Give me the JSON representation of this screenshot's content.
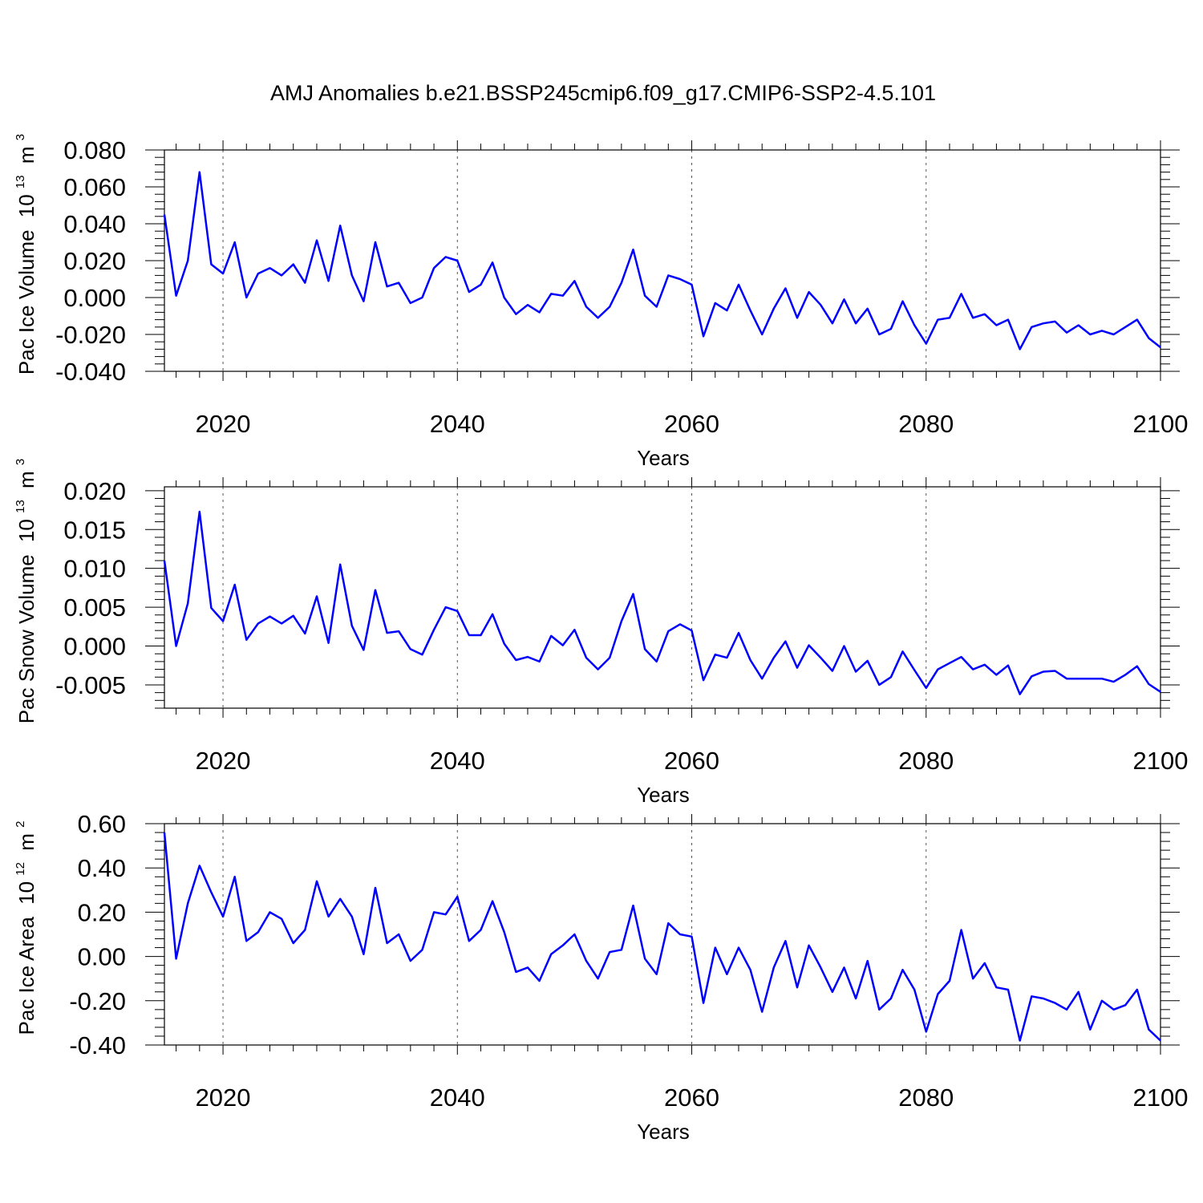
{
  "title": "AMJ Anomalies b.e21.BSSP245cmip6.f09_g17.CMIP6-SSP2-4.5.101",
  "colors": {
    "series": "#0000ff",
    "axes": "#000000",
    "grid": "#555555"
  },
  "chart_data": [
    {
      "type": "line",
      "ylabel": "Pac Ice Volume",
      "ylabel_unit": {
        "base": "10",
        "exp": "13",
        "unit": "m",
        "unit_exp": "3"
      },
      "xlabel": "Years",
      "xlim": [
        2015,
        2100
      ],
      "ylim": [
        -0.04,
        0.08
      ],
      "xticks": [
        2020,
        2040,
        2060,
        2080,
        2100
      ],
      "xtick_labels": [
        "2020",
        "2040",
        "2060",
        "2080",
        "2100"
      ],
      "yticks": [
        -0.04,
        -0.02,
        0.0,
        0.02,
        0.04,
        0.06,
        0.08
      ],
      "ytick_labels": [
        "-0.040",
        "-0.020",
        "0.000",
        "0.020",
        "0.040",
        "0.060",
        "0.080"
      ],
      "grid": "vertical dashed at major x ticks",
      "start_year": 2015,
      "values": [
        0.045,
        0.001,
        0.02,
        0.068,
        0.018,
        0.013,
        0.03,
        0.0,
        0.013,
        0.016,
        0.012,
        0.018,
        0.008,
        0.031,
        0.009,
        0.039,
        0.012,
        -0.002,
        0.03,
        0.006,
        0.008,
        -0.003,
        0.0,
        0.016,
        0.022,
        0.02,
        0.003,
        0.007,
        0.019,
        0.0,
        -0.009,
        -0.004,
        -0.008,
        0.002,
        0.001,
        0.009,
        -0.005,
        -0.011,
        -0.005,
        0.008,
        0.026,
        0.001,
        -0.005,
        0.012,
        0.01,
        0.007,
        -0.021,
        -0.003,
        -0.007,
        0.007,
        -0.007,
        -0.02,
        -0.006,
        0.005,
        -0.011,
        0.003,
        -0.004,
        -0.014,
        -0.001,
        -0.014,
        -0.006,
        -0.02,
        -0.017,
        -0.002,
        -0.015,
        -0.025,
        -0.012,
        -0.011,
        0.002,
        -0.011,
        -0.009,
        -0.015,
        -0.012,
        -0.028,
        -0.016,
        -0.014,
        -0.013,
        -0.019,
        -0.015,
        -0.02,
        -0.018,
        -0.02,
        -0.016,
        -0.012,
        -0.022,
        -0.027
      ]
    },
    {
      "type": "line",
      "ylabel": "Pac Snow Volume",
      "ylabel_unit": {
        "base": "10",
        "exp": "13",
        "unit": "m",
        "unit_exp": "3"
      },
      "xlabel": "Years",
      "xlim": [
        2015,
        2100
      ],
      "ylim": [
        -0.008,
        0.0205
      ],
      "xticks": [
        2020,
        2040,
        2060,
        2080,
        2100
      ],
      "xtick_labels": [
        "2020",
        "2040",
        "2060",
        "2080",
        "2100"
      ],
      "yticks": [
        -0.005,
        0.0,
        0.005,
        0.01,
        0.015,
        0.02
      ],
      "ytick_labels": [
        "-0.005",
        "0.000",
        "0.005",
        "0.010",
        "0.015",
        "0.020"
      ],
      "grid": "vertical dashed at major x ticks",
      "start_year": 2015,
      "values": [
        0.011,
        0.0,
        0.0055,
        0.0173,
        0.0049,
        0.0032,
        0.0079,
        0.0008,
        0.0029,
        0.0038,
        0.0029,
        0.0039,
        0.0016,
        0.0064,
        0.0004,
        0.0105,
        0.0026,
        -0.0005,
        0.0072,
        0.0017,
        0.0019,
        -0.0004,
        -0.0011,
        0.0021,
        0.005,
        0.0045,
        0.0014,
        0.0014,
        0.0041,
        0.0003,
        -0.0018,
        -0.0014,
        -0.002,
        0.0013,
        0.0001,
        0.0021,
        -0.0015,
        -0.003,
        -0.0015,
        0.0032,
        0.0067,
        -0.0004,
        -0.002,
        0.0019,
        0.0028,
        0.002,
        -0.0044,
        -0.0011,
        -0.0015,
        0.0017,
        -0.0018,
        -0.0042,
        -0.0015,
        0.0006,
        -0.0028,
        0.0001,
        -0.0015,
        -0.0032,
        0.0,
        -0.0033,
        -0.0019,
        -0.005,
        -0.004,
        -0.0007,
        -0.0031,
        -0.0054,
        -0.003,
        -0.0022,
        -0.0014,
        -0.003,
        -0.0024,
        -0.0037,
        -0.0025,
        -0.0062,
        -0.0039,
        -0.0033,
        -0.0032,
        -0.0042,
        -0.0042,
        -0.0042,
        -0.0042,
        -0.0046,
        -0.0037,
        -0.0026,
        -0.0049,
        -0.0059
      ]
    },
    {
      "type": "line",
      "ylabel": "Pac Ice Area",
      "ylabel_unit": {
        "base": "10",
        "exp": "12",
        "unit": "m",
        "unit_exp": "2"
      },
      "xlabel": "Years",
      "xlim": [
        2015,
        2100
      ],
      "ylim": [
        -0.4,
        0.6
      ],
      "xticks": [
        2020,
        2040,
        2060,
        2080,
        2100
      ],
      "xtick_labels": [
        "2020",
        "2040",
        "2060",
        "2080",
        "2100"
      ],
      "yticks": [
        -0.4,
        -0.2,
        0.0,
        0.2,
        0.4,
        0.6
      ],
      "ytick_labels": [
        "-0.40",
        "-0.20",
        "0.00",
        "0.20",
        "0.40",
        "0.60"
      ],
      "grid": "vertical dashed at major x ticks",
      "start_year": 2015,
      "values": [
        0.56,
        -0.01,
        0.24,
        0.41,
        0.29,
        0.18,
        0.36,
        0.07,
        0.11,
        0.2,
        0.17,
        0.06,
        0.12,
        0.34,
        0.18,
        0.26,
        0.18,
        0.01,
        0.31,
        0.06,
        0.1,
        -0.02,
        0.03,
        0.2,
        0.19,
        0.27,
        0.07,
        0.12,
        0.25,
        0.11,
        -0.07,
        -0.05,
        -0.11,
        0.01,
        0.05,
        0.1,
        -0.02,
        -0.1,
        0.02,
        0.03,
        0.23,
        -0.01,
        -0.08,
        0.15,
        0.1,
        0.09,
        -0.21,
        0.04,
        -0.08,
        0.04,
        -0.06,
        -0.25,
        -0.05,
        0.07,
        -0.14,
        0.05,
        -0.05,
        -0.16,
        -0.05,
        -0.19,
        -0.02,
        -0.24,
        -0.19,
        -0.06,
        -0.15,
        -0.34,
        -0.17,
        -0.11,
        0.12,
        -0.1,
        -0.03,
        -0.14,
        -0.15,
        -0.38,
        -0.18,
        -0.19,
        -0.21,
        -0.24,
        -0.16,
        -0.33,
        -0.2,
        -0.24,
        -0.22,
        -0.15,
        -0.33,
        -0.38
      ]
    }
  ]
}
